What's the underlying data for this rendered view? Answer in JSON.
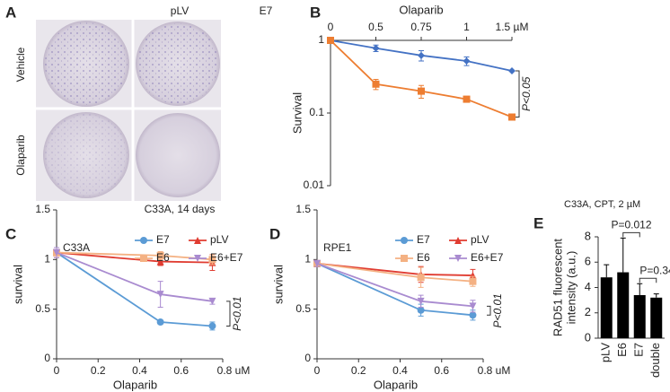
{
  "panel_a": {
    "label": "A",
    "columns": [
      "pLV",
      "E7"
    ],
    "rows": [
      "Vehicle",
      "Olaparib"
    ],
    "caption": "C33A, 14 days"
  },
  "chart_data": [
    {
      "type": "line",
      "label": "B",
      "x_label": "Olaparib",
      "y_label": "Survival",
      "categories": [
        "0",
        "0.5",
        "0.75",
        "1",
        "1.5 µM"
      ],
      "log_y": true,
      "ylim": [
        0.01,
        1
      ],
      "yticks": [
        0.01,
        0.1,
        1
      ],
      "series": [
        {
          "color": "#4472c4",
          "marker": "diamond",
          "values": [
            1,
            0.78,
            0.62,
            0.52,
            0.38
          ],
          "errors": [
            0,
            0.08,
            0.1,
            0.07,
            0
          ]
        },
        {
          "color": "#ed7d31",
          "marker": "square",
          "values": [
            1,
            0.25,
            0.2,
            0.155,
            0.088
          ],
          "errors": [
            0,
            0.04,
            0.04,
            0.01,
            0.005
          ]
        }
      ],
      "annotation": "P<0.05"
    },
    {
      "type": "line",
      "label": "C",
      "title": "C33A",
      "x_label": "Olaparib",
      "y_label": "survival",
      "x": [
        0,
        0.5,
        0.75
      ],
      "xlim": [
        0,
        0.8
      ],
      "xticks": [
        0,
        0.2,
        0.4,
        0.6,
        {
          "value": 0.8,
          "label": "0.8 uM"
        }
      ],
      "ylim": [
        0,
        1.5
      ],
      "yticks": [
        0,
        0.5,
        1,
        1.5
      ],
      "series": [
        {
          "name": "E7",
          "color": "#5b9bd5",
          "marker": "circle",
          "values": [
            1.07,
            0.37,
            0.33
          ],
          "errors": [
            0.05,
            0.02,
            0.04
          ]
        },
        {
          "name": "pLV",
          "color": "#e03c31",
          "marker": "triangle",
          "values": [
            1.07,
            0.98,
            0.97
          ],
          "errors": [
            0.05,
            0.04,
            0.08
          ]
        },
        {
          "name": "E6",
          "color": "#f4b183",
          "marker": "square",
          "values": [
            1.07,
            1.04,
            1.0
          ],
          "errors": [
            0.05,
            0.04,
            0.05
          ]
        },
        {
          "name": "E6+E7",
          "color": "#a98bd0",
          "marker": "triangle-down",
          "values": [
            1.07,
            0.65,
            0.58
          ],
          "errors": [
            0.05,
            0.13,
            0.03
          ]
        }
      ],
      "annotation": "P<0.01"
    },
    {
      "type": "line",
      "label": "D",
      "title": "RPE1",
      "x_label": "Olaparib",
      "y_label": "survival",
      "x": [
        0,
        0.5,
        0.75
      ],
      "xlim": [
        0,
        0.8
      ],
      "xticks": [
        0,
        0.2,
        0.4,
        0.6,
        {
          "value": 0.8,
          "label": "0.8 uM"
        }
      ],
      "ylim": [
        0,
        1.5
      ],
      "yticks": [
        0,
        0.5,
        1,
        1.5
      ],
      "series": [
        {
          "name": "E7",
          "color": "#5b9bd5",
          "marker": "circle",
          "values": [
            0.96,
            0.49,
            0.44
          ],
          "errors": [
            0.03,
            0.06,
            0.05
          ]
        },
        {
          "name": "pLV",
          "color": "#e03c31",
          "marker": "triangle",
          "values": [
            0.96,
            0.85,
            0.84
          ],
          "errors": [
            0.03,
            0.08,
            0.06
          ]
        },
        {
          "name": "E6",
          "color": "#f4b183",
          "marker": "square",
          "values": [
            0.96,
            0.82,
            0.78
          ],
          "errors": [
            0.03,
            0.1,
            0.05
          ]
        },
        {
          "name": "E6+E7",
          "color": "#a98bd0",
          "marker": "triangle-down",
          "values": [
            0.96,
            0.58,
            0.53
          ],
          "errors": [
            0.03,
            0.06,
            0.06
          ]
        }
      ],
      "annotation": "P<0.01"
    },
    {
      "type": "bar",
      "label": "E",
      "title": "C33A, CPT, 2 µM",
      "y_label": [
        "RAD51 fluorescent",
        "intensity (a.u.)"
      ],
      "categories": [
        "pLV",
        "E6",
        "E7",
        "double"
      ],
      "values": [
        4.8,
        5.2,
        3.4,
        3.2
      ],
      "errors": [
        1.0,
        2.7,
        0.9,
        0.3
      ],
      "color": "#000000",
      "ylim": [
        0,
        8
      ],
      "yticks": [
        0,
        2,
        4,
        6,
        8
      ],
      "annotations": [
        "P=0.012",
        "P=0.34"
      ]
    }
  ]
}
